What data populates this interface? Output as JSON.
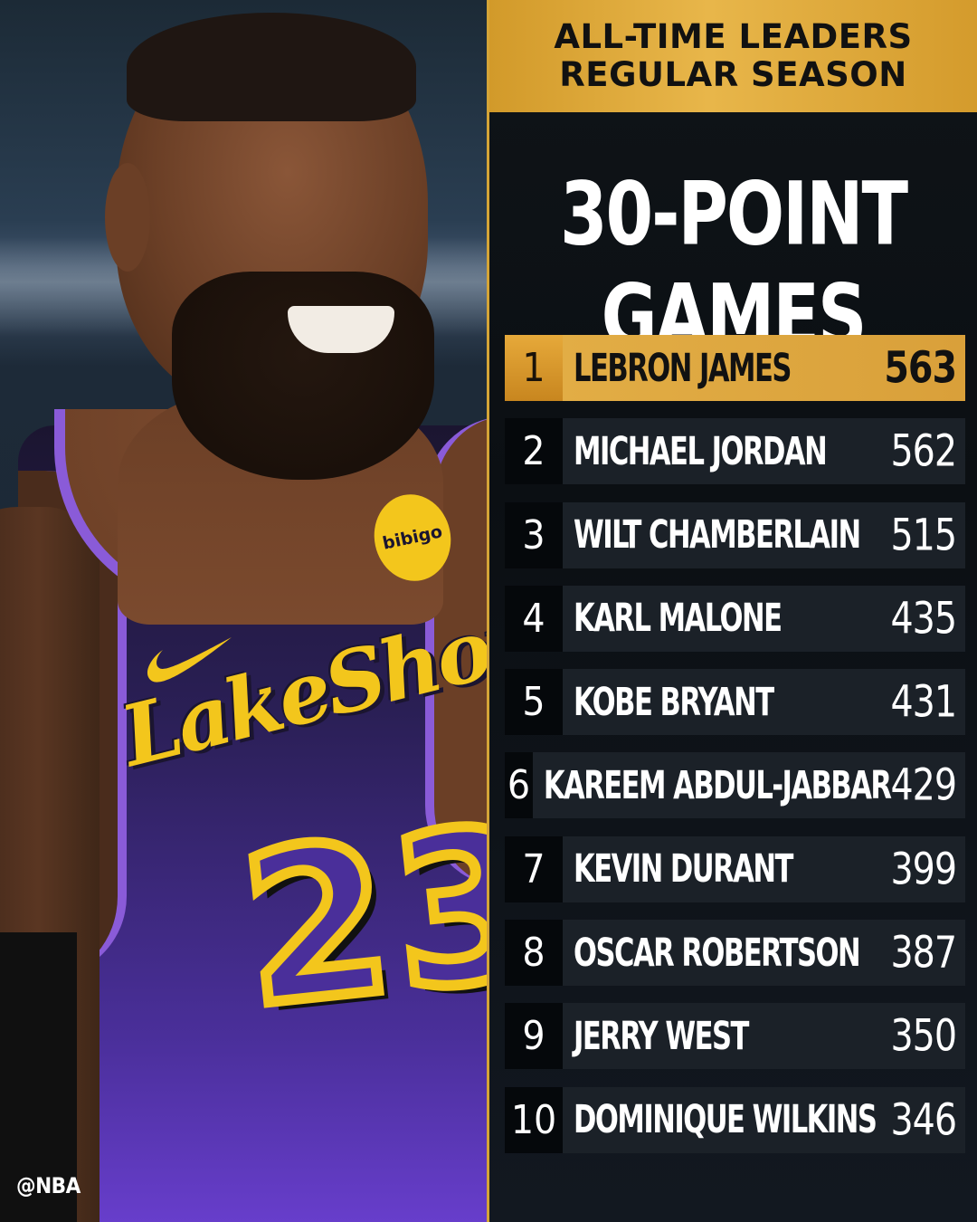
{
  "header": {
    "line1": "ALL-TIME LEADERS",
    "line2": "REGULAR SEASON"
  },
  "title": "30-POINT GAMES",
  "watermark": "@NBA",
  "photo": {
    "patch_text": "bibigo",
    "jersey_wordmark": "LakeShow",
    "jersey_number": "23"
  },
  "colors": {
    "accent_gold": "#e2ad45",
    "panel_dark": "#1b2128",
    "jersey_purple": "#4a2f9a"
  },
  "leaders": [
    {
      "rank": "1",
      "name": "LEBRON JAMES",
      "value": "563"
    },
    {
      "rank": "2",
      "name": "MICHAEL JORDAN",
      "value": "562"
    },
    {
      "rank": "3",
      "name": "WILT CHAMBERLAIN",
      "value": "515"
    },
    {
      "rank": "4",
      "name": "KARL MALONE",
      "value": "435"
    },
    {
      "rank": "5",
      "name": "KOBE BRYANT",
      "value": "431"
    },
    {
      "rank": "6",
      "name": "KAREEM ABDUL-JABBAR",
      "value": "429"
    },
    {
      "rank": "7",
      "name": "KEVIN DURANT",
      "value": "399"
    },
    {
      "rank": "8",
      "name": "OSCAR ROBERTSON",
      "value": "387"
    },
    {
      "rank": "9",
      "name": "JERRY WEST",
      "value": "350"
    },
    {
      "rank": "10",
      "name": "DOMINIQUE WILKINS",
      "value": "346"
    }
  ]
}
